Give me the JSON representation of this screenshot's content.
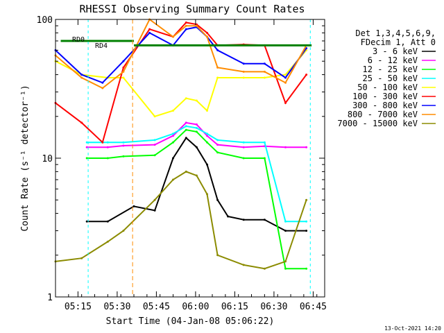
{
  "chart_data": {
    "type": "line",
    "title": "RHESSI Observing Summary Count Rates",
    "xlabel": "Start Time (04-Jan-08 05:06:22)",
    "ylabel": "Count Rate (s⁻¹ detector⁻¹)",
    "yscale": "log",
    "ylim": [
      1,
      100
    ],
    "xlim_minutes": [
      0,
      103
    ],
    "x_ticks": [
      {
        "t": 8.6,
        "label": "05:15"
      },
      {
        "t": 23.6,
        "label": "05:30"
      },
      {
        "t": 38.6,
        "label": "05:45"
      },
      {
        "t": 53.6,
        "label": "06:00"
      },
      {
        "t": 68.6,
        "label": "06:15"
      },
      {
        "t": 83.6,
        "label": "06:30"
      },
      {
        "t": 98.6,
        "label": "06:45"
      }
    ],
    "y_ticks": [
      {
        "v": 1,
        "label": "1"
      },
      {
        "v": 10,
        "label": "10"
      },
      {
        "v": 100,
        "label": "100"
      }
    ],
    "legend_header": [
      "Det 1,3,4,5,6,9,",
      "FDecim 1, Att 0"
    ],
    "annotations": {
      "rd0": "RD0",
      "rd4": "RD4",
      "timestamp": "13-Oct-2021 14:20"
    },
    "series": [
      {
        "name": "3 - 6 keV",
        "color": "#000000",
        "points": [
          [
            12,
            3.5
          ],
          [
            20,
            3.5
          ],
          [
            30,
            4.5
          ],
          [
            38,
            4.2
          ],
          [
            45,
            10
          ],
          [
            50,
            14
          ],
          [
            54,
            12
          ],
          [
            58,
            9
          ],
          [
            62,
            5
          ],
          [
            66,
            3.8
          ],
          [
            72,
            3.6
          ],
          [
            80,
            3.6
          ],
          [
            88,
            3
          ],
          [
            96,
            3
          ]
        ]
      },
      {
        "name": "6 - 12 keV",
        "color": "#ff00ff",
        "points": [
          [
            12,
            12
          ],
          [
            20,
            12
          ],
          [
            26,
            12.3
          ],
          [
            38,
            12.5
          ],
          [
            45,
            14.5
          ],
          [
            50,
            18
          ],
          [
            54,
            17.5
          ],
          [
            58,
            14.5
          ],
          [
            62,
            12.5
          ],
          [
            72,
            12
          ],
          [
            80,
            12.2
          ],
          [
            88,
            12
          ],
          [
            96,
            12
          ]
        ]
      },
      {
        "name": "12 - 25 keV",
        "color": "#00ff00",
        "points": [
          [
            12,
            10
          ],
          [
            20,
            10
          ],
          [
            26,
            10.3
          ],
          [
            38,
            10.5
          ],
          [
            45,
            13
          ],
          [
            50,
            16
          ],
          [
            54,
            15.5
          ],
          [
            58,
            13
          ],
          [
            62,
            11
          ],
          [
            72,
            10
          ],
          [
            80,
            10
          ],
          [
            88,
            1.6
          ],
          [
            96,
            1.6
          ]
        ]
      },
      {
        "name": "25 - 50 keV",
        "color": "#00ffff",
        "points": [
          [
            12,
            13
          ],
          [
            20,
            13
          ],
          [
            26,
            13
          ],
          [
            38,
            13.5
          ],
          [
            45,
            15
          ],
          [
            50,
            17
          ],
          [
            54,
            16.5
          ],
          [
            58,
            15
          ],
          [
            62,
            13.5
          ],
          [
            72,
            13
          ],
          [
            80,
            13
          ],
          [
            88,
            3.5
          ],
          [
            96,
            3.5
          ]
        ]
      },
      {
        "name": "50 - 100 keV",
        "color": "#ffff00",
        "points": [
          [
            0,
            50
          ],
          [
            10,
            40
          ],
          [
            20,
            38
          ],
          [
            26,
            38
          ],
          [
            38,
            20
          ],
          [
            45,
            22
          ],
          [
            50,
            27
          ],
          [
            54,
            26
          ],
          [
            58,
            22
          ],
          [
            62,
            38
          ],
          [
            72,
            38
          ],
          [
            80,
            38
          ],
          [
            88,
            40
          ],
          [
            96,
            60
          ]
        ]
      },
      {
        "name": "100 - 300 keV",
        "color": "#ff0000",
        "points": [
          [
            0,
            25
          ],
          [
            10,
            18
          ],
          [
            18,
            13
          ],
          [
            26,
            45
          ],
          [
            36,
            85
          ],
          [
            45,
            75
          ],
          [
            50,
            95
          ],
          [
            54,
            92
          ],
          [
            58,
            80
          ],
          [
            62,
            65
          ],
          [
            72,
            66
          ],
          [
            80,
            65
          ],
          [
            88,
            25
          ],
          [
            96,
            40
          ]
        ]
      },
      {
        "name": "300 - 800 keV",
        "color": "#0000ff",
        "points": [
          [
            0,
            60
          ],
          [
            10,
            40
          ],
          [
            18,
            35
          ],
          [
            26,
            50
          ],
          [
            36,
            80
          ],
          [
            45,
            65
          ],
          [
            50,
            85
          ],
          [
            54,
            88
          ],
          [
            58,
            75
          ],
          [
            62,
            60
          ],
          [
            72,
            48
          ],
          [
            80,
            48
          ],
          [
            88,
            38
          ],
          [
            96,
            62
          ]
        ]
      },
      {
        "name": "800 - 7000 keV",
        "color": "#ff8c00",
        "points": [
          [
            0,
            55
          ],
          [
            10,
            38
          ],
          [
            18,
            32
          ],
          [
            26,
            42
          ],
          [
            36,
            100
          ],
          [
            45,
            75
          ],
          [
            50,
            90
          ],
          [
            54,
            90
          ],
          [
            58,
            75
          ],
          [
            62,
            45
          ],
          [
            72,
            42
          ],
          [
            80,
            42
          ],
          [
            88,
            35
          ],
          [
            96,
            65
          ]
        ]
      },
      {
        "name": "7000 - 15000 keV",
        "color": "#8b8b00",
        "points": [
          [
            0,
            1.8
          ],
          [
            10,
            1.9
          ],
          [
            20,
            2.5
          ],
          [
            26,
            3
          ],
          [
            38,
            5
          ],
          [
            45,
            7
          ],
          [
            50,
            8
          ],
          [
            54,
            7.5
          ],
          [
            58,
            5.5
          ],
          [
            62,
            2
          ],
          [
            72,
            1.7
          ],
          [
            80,
            1.6
          ],
          [
            88,
            1.8
          ],
          [
            96,
            5
          ]
        ]
      }
    ]
  }
}
